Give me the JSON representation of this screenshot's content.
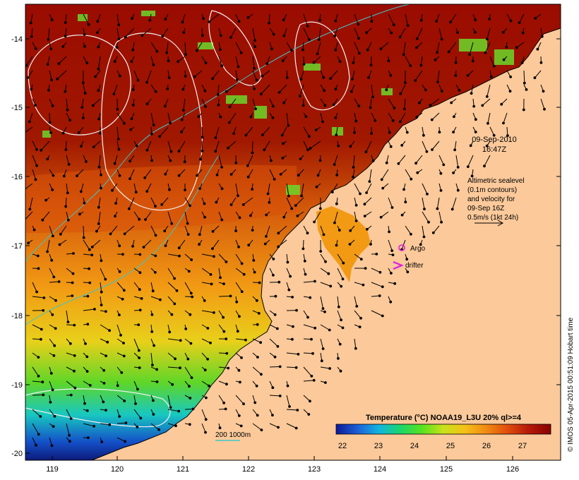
{
  "map": {
    "axes": {
      "x_ticks": [
        "119",
        "120",
        "121",
        "122",
        "123",
        "124",
        "125",
        "126"
      ],
      "y_ticks": [
        "-14",
        "-15",
        "-16",
        "-17",
        "-18",
        "-19",
        "-20"
      ]
    },
    "annotation": {
      "date": "09-Sep-2010",
      "time": "16:47Z",
      "altimetry_lines": [
        "Altimetric sealevel",
        "(0.1m contours)",
        "and velocity for",
        "09-Sep 16Z",
        "0.5m/s (1kt 24h)"
      ]
    },
    "legend": {
      "argo_label": "Argo",
      "drifter_label": "drifter",
      "depth_label": "200  1000m",
      "colorbar_title": "Temperature (°C) NOAA19_L3U 20% ql>=4",
      "colorbar_ticks": [
        "22",
        "23",
        "24",
        "25",
        "26",
        "27"
      ],
      "colors": [
        "#0d1a96",
        "#1d5fd6",
        "#12b5e0",
        "#1bd66b",
        "#58e21f",
        "#c9e21a",
        "#f4c018",
        "#f08a12",
        "#e04c0c",
        "#b41808",
        "#8a0000"
      ]
    },
    "credit": "© IMOS 05-Apr-2015 00:51:09 Hobart time",
    "colors": {
      "land": "#fbc99a",
      "sea_warm": "#9a0c00",
      "contour": "#f0f0f0",
      "isobath": "#3ec7c7",
      "marker": "#e21ae2"
    }
  }
}
